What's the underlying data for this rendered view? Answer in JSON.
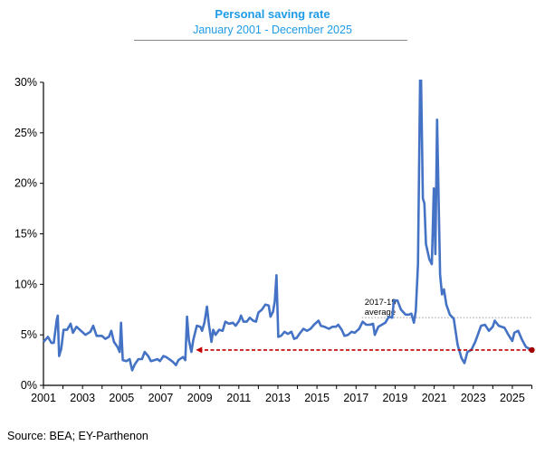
{
  "chart_data": {
    "type": "line",
    "title": "Personal saving rate",
    "subtitle": "January 2001 - December 2025",
    "source": "Source: BEA; EY-Parthenon",
    "xlim": [
      2001,
      2026
    ],
    "ylim": [
      0,
      30
    ],
    "x_ticks": [
      "2001",
      "2003",
      "2005",
      "2007",
      "2009",
      "2011",
      "2013",
      "2015",
      "2017",
      "2019",
      "2021",
      "2023",
      "2025"
    ],
    "y_ticks": [
      "0%",
      "5%",
      "10%",
      "15%",
      "20%",
      "25%",
      "30%"
    ],
    "colors": {
      "series": "#4472c4",
      "reference": "#c00000",
      "average": "#999999",
      "title": "#1e9be8"
    },
    "average": {
      "label_line1": "2017-19",
      "label_line2": "average",
      "value": 6.7,
      "x_start": 2017.3
    },
    "reference_arrow": {
      "value": 3.5,
      "x_from": 2026.0,
      "x_to": 2008.8
    },
    "series": [
      {
        "name": "Personal saving rate",
        "x": [
          2001.0,
          2001.23,
          2001.41,
          2001.53,
          2001.68,
          2001.73,
          2001.8,
          2001.91,
          2002.03,
          2002.21,
          2002.39,
          2002.51,
          2002.69,
          2002.92,
          2003.15,
          2003.4,
          2003.55,
          2003.72,
          2003.99,
          2004.17,
          2004.35,
          2004.47,
          2004.61,
          2004.79,
          2004.9,
          2004.97,
          2005.06,
          2005.24,
          2005.41,
          2005.54,
          2005.68,
          2005.86,
          2006.04,
          2006.18,
          2006.36,
          2006.5,
          2006.68,
          2006.84,
          2006.96,
          2007.14,
          2007.28,
          2007.5,
          2007.64,
          2007.78,
          2007.91,
          2008.14,
          2008.26,
          2008.35,
          2008.44,
          2008.57,
          2008.67,
          2008.85,
          2009.03,
          2009.12,
          2009.24,
          2009.37,
          2009.47,
          2009.6,
          2009.69,
          2009.81,
          2009.99,
          2010.17,
          2010.31,
          2010.49,
          2010.7,
          2010.84,
          2011.02,
          2011.11,
          2011.24,
          2011.41,
          2011.56,
          2011.73,
          2011.88,
          2012.0,
          2012.18,
          2012.36,
          2012.53,
          2012.62,
          2012.75,
          2012.84,
          2012.93,
          2013.02,
          2013.16,
          2013.34,
          2013.51,
          2013.69,
          2013.83,
          2013.96,
          2014.14,
          2014.31,
          2014.49,
          2014.67,
          2014.85,
          2015.08,
          2015.2,
          2015.38,
          2015.61,
          2015.79,
          2015.97,
          2016.09,
          2016.27,
          2016.41,
          2016.59,
          2016.77,
          2016.93,
          2017.16,
          2017.34,
          2017.52,
          2017.7,
          2017.87,
          2017.96,
          2018.14,
          2018.32,
          2018.5,
          2018.68,
          2018.85,
          2018.94,
          2019.12,
          2019.3,
          2019.53,
          2019.71,
          2019.83,
          2019.96,
          2020.06,
          2020.17,
          2020.3,
          2020.42,
          2020.5,
          2020.58,
          2020.75,
          2020.88,
          2020.98,
          2021.06,
          2021.15,
          2021.3,
          2021.4,
          2021.5,
          2021.62,
          2021.8,
          2022.0,
          2022.2,
          2022.4,
          2022.55,
          2022.7,
          2022.9,
          2023.1,
          2023.4,
          2023.6,
          2023.8,
          2024.0,
          2024.1,
          2024.3,
          2024.6,
          2024.8,
          2025.0,
          2025.1,
          2025.3,
          2025.5,
          2025.7,
          2025.9,
          2026.0
        ],
        "y": [
          4.3,
          4.8,
          4.2,
          4.2,
          6.5,
          6.9,
          2.9,
          3.6,
          5.5,
          5.5,
          6.1,
          5.2,
          5.8,
          5.4,
          5.0,
          5.3,
          5.9,
          4.9,
          4.9,
          4.6,
          4.8,
          5.4,
          4.3,
          3.8,
          3.3,
          6.2,
          2.5,
          2.4,
          2.6,
          1.5,
          2.1,
          2.6,
          2.6,
          3.3,
          2.9,
          2.4,
          2.5,
          2.6,
          2.4,
          2.9,
          2.8,
          2.5,
          2.3,
          2.0,
          2.5,
          2.8,
          2.5,
          6.8,
          4.5,
          3.3,
          4.5,
          5.9,
          5.8,
          5.4,
          6.2,
          7.8,
          6.0,
          4.3,
          5.5,
          5.0,
          5.5,
          5.4,
          6.3,
          6.1,
          6.2,
          5.9,
          6.4,
          6.9,
          6.3,
          6.3,
          6.7,
          6.4,
          6.3,
          7.2,
          7.5,
          8.0,
          7.9,
          6.8,
          7.3,
          8.3,
          10.9,
          4.8,
          4.9,
          5.3,
          5.1,
          5.3,
          4.6,
          4.7,
          5.2,
          5.6,
          5.4,
          5.6,
          6.0,
          6.4,
          5.9,
          5.8,
          5.6,
          5.8,
          5.8,
          6.0,
          5.5,
          4.9,
          5.0,
          5.3,
          5.2,
          5.6,
          6.3,
          6.0,
          6.0,
          6.1,
          5.0,
          5.8,
          6.0,
          6.2,
          6.8,
          6.7,
          8.4,
          8.4,
          7.5,
          7.0,
          7.0,
          7.1,
          6.2,
          7.4,
          12.0,
          33.8,
          18.5,
          18.0,
          14.0,
          12.5,
          12.0,
          19.5,
          13.0,
          26.3,
          11.0,
          9.0,
          9.5,
          8.0,
          7.0,
          6.6,
          4.0,
          2.7,
          2.2,
          3.3,
          3.5,
          4.3,
          5.9,
          6.0,
          5.4,
          5.8,
          6.4,
          5.9,
          5.7,
          5.0,
          4.4,
          5.2,
          5.4,
          4.5,
          3.8,
          3.6,
          3.5
        ]
      }
    ]
  }
}
